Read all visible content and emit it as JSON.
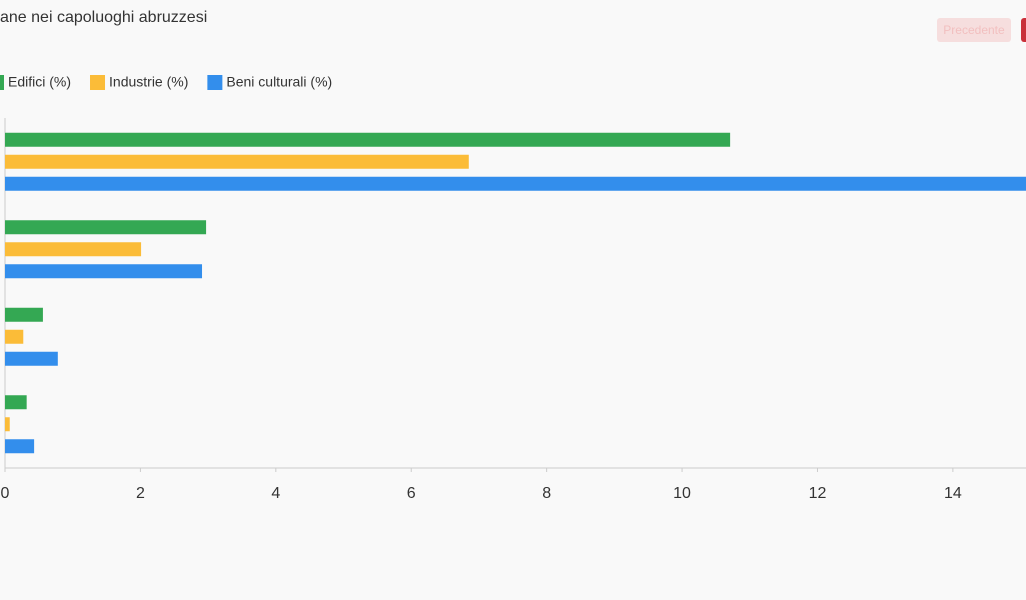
{
  "chart_data": {
    "type": "bar",
    "orientation": "horizontal",
    "title": "ane nei capoluoghi abruzzesi",
    "categories": [
      null,
      null,
      null,
      null
    ],
    "series": [
      {
        "name": "Edifici (%)",
        "color": "#34a853",
        "values": [
          10.71,
          2.97,
          0.56,
          0.32
        ]
      },
      {
        "name": "Industrie (%)",
        "color": "#fbbc38",
        "values": [
          6.85,
          2.01,
          0.27,
          0.07
        ]
      },
      {
        "name": "Beni culturali (%)",
        "color": "#338eec",
        "values": [
          15.1,
          2.91,
          0.78,
          0.43
        ]
      }
    ],
    "xlim": [
      0,
      15.08
    ],
    "xticks": [
      0,
      2,
      4,
      6,
      8,
      10,
      12,
      14
    ],
    "legend": "top-left"
  },
  "controls": {
    "previous": "Precedente"
  }
}
